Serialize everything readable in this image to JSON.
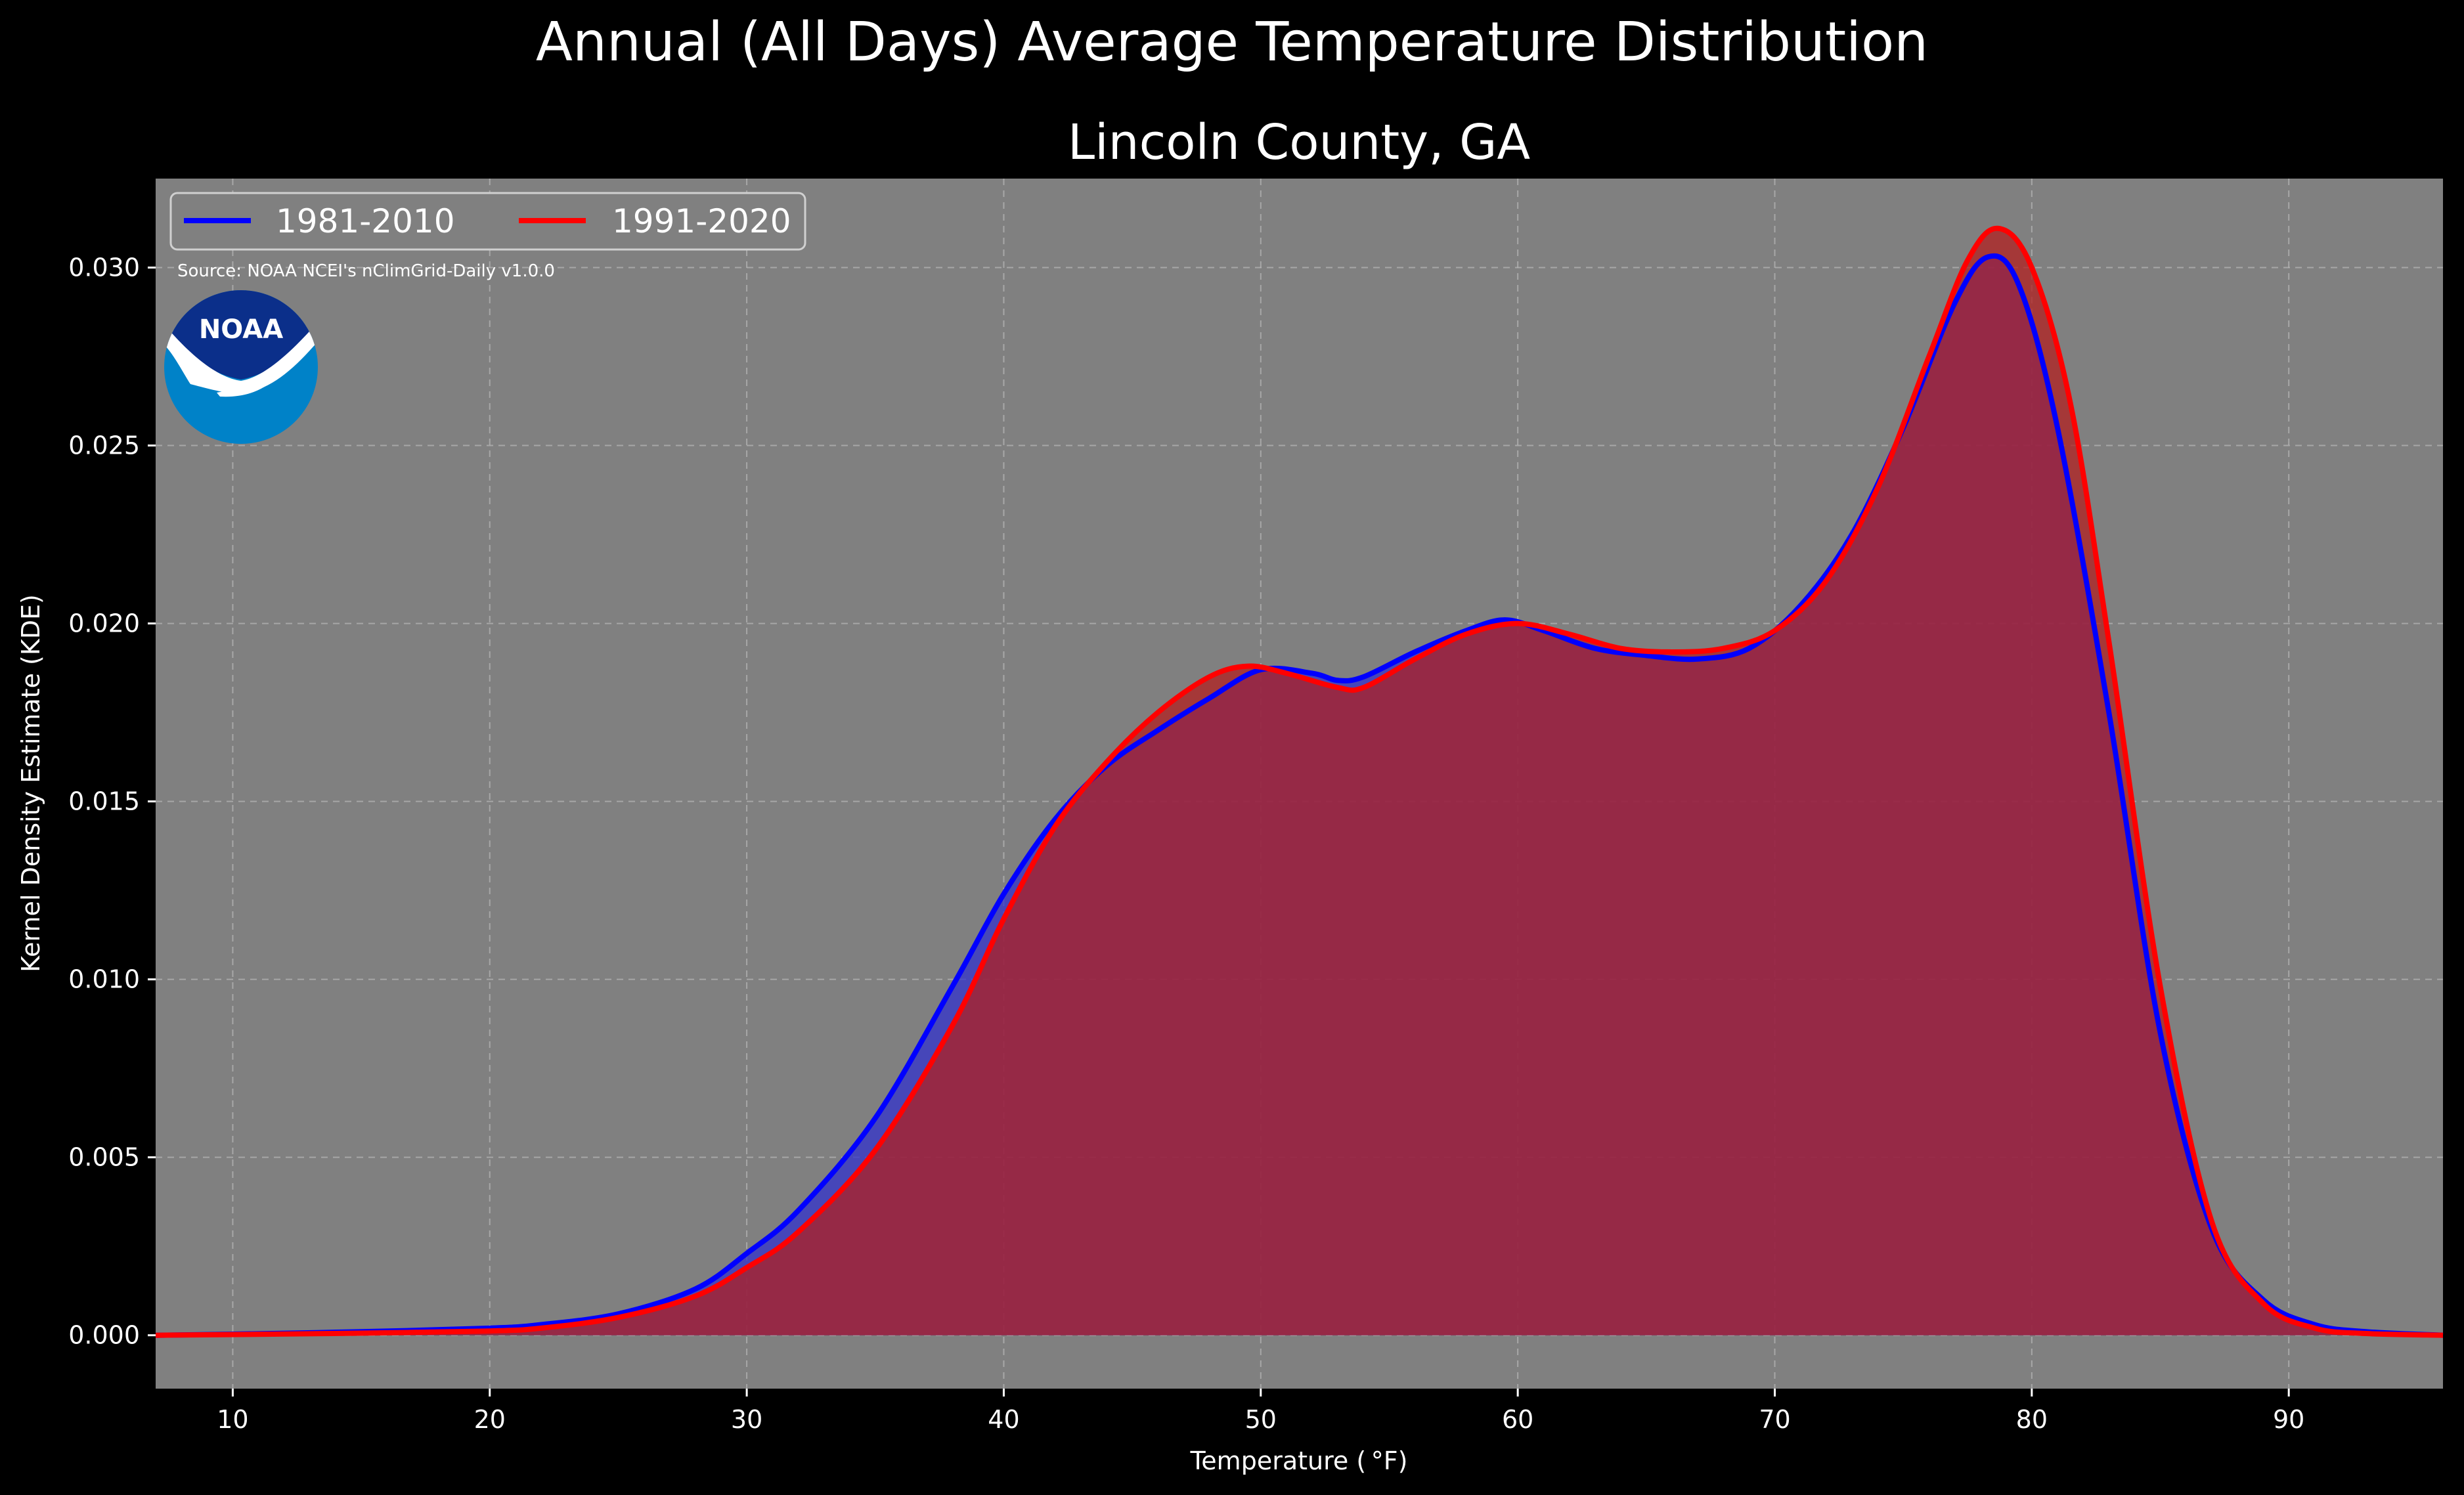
{
  "chart_data": {
    "type": "area",
    "title": "Annual (All Days) Average Temperature Distribution",
    "subtitle": "Lincoln County, GA",
    "xlabel": "Temperature ( °F)",
    "ylabel": "Kernel Density Estimate (KDE)",
    "xlim": [
      7,
      96
    ],
    "ylim": [
      -0.0015,
      0.0325
    ],
    "xticks": [
      10,
      20,
      30,
      40,
      50,
      60,
      70,
      80,
      90
    ],
    "yticks": [
      0.0,
      0.005,
      0.01,
      0.015,
      0.02,
      0.025,
      0.03
    ],
    "ytick_labels": [
      "0.000",
      "0.005",
      "0.010",
      "0.015",
      "0.020",
      "0.025",
      "0.030"
    ],
    "grid": true,
    "legend_position": "top-left",
    "source": "Source: NOAA NCEI's nClimGrid-Daily v1.0.0",
    "logo_text": "NOAA",
    "colors": {
      "background": "#000000",
      "plot_background": "#808080"
    },
    "series": [
      {
        "name": "1981-2010",
        "color": "#0000ff",
        "fill": "#3333cc",
        "x": [
          7,
          10,
          15,
          20,
          22,
          25,
          28,
          30,
          32,
          35,
          38,
          40,
          42,
          44,
          46,
          48,
          50,
          52,
          53,
          54,
          56,
          58,
          59.5,
          61,
          63,
          65,
          67,
          69,
          71,
          73,
          75,
          77,
          78.3,
          79.5,
          81,
          83,
          85,
          87,
          89,
          91,
          93,
          96
        ],
        "values": [
          0.0,
          3e-05,
          0.0001,
          0.0002,
          0.0003,
          0.0006,
          0.0013,
          0.0023,
          0.0035,
          0.0061,
          0.0098,
          0.0124,
          0.0145,
          0.016,
          0.017,
          0.0179,
          0.0187,
          0.0186,
          0.0184,
          0.0185,
          0.0192,
          0.0198,
          0.0201,
          0.0198,
          0.0193,
          0.0191,
          0.019,
          0.0193,
          0.0205,
          0.0225,
          0.0255,
          0.029,
          0.0303,
          0.0295,
          0.0255,
          0.0175,
          0.0085,
          0.003,
          0.001,
          0.0003,
          0.0001,
          0.0
        ]
      },
      {
        "name": "1991-2020",
        "color": "#ff0000",
        "fill": "#b22020",
        "x": [
          7,
          10,
          15,
          20,
          22,
          25,
          28,
          30,
          32,
          35,
          38,
          40,
          42,
          44,
          46,
          48,
          49.5,
          51,
          53,
          54,
          56,
          58,
          60,
          62,
          64,
          66,
          68,
          70,
          72,
          74,
          76,
          77.5,
          78.7,
          80,
          81.5,
          83,
          85,
          87,
          89,
          91,
          93,
          96
        ],
        "values": [
          0.0,
          2e-05,
          6e-05,
          0.00012,
          0.0002,
          0.0005,
          0.0011,
          0.0019,
          0.0029,
          0.0052,
          0.0087,
          0.0117,
          0.0143,
          0.0161,
          0.0175,
          0.0185,
          0.0188,
          0.0186,
          0.0182,
          0.0182,
          0.019,
          0.0197,
          0.02,
          0.0197,
          0.0193,
          0.0192,
          0.0193,
          0.0198,
          0.0212,
          0.0238,
          0.0275,
          0.0302,
          0.0311,
          0.03,
          0.0262,
          0.0195,
          0.0098,
          0.0032,
          0.0009,
          0.0002,
          5e-05,
          0.0
        ]
      }
    ]
  }
}
